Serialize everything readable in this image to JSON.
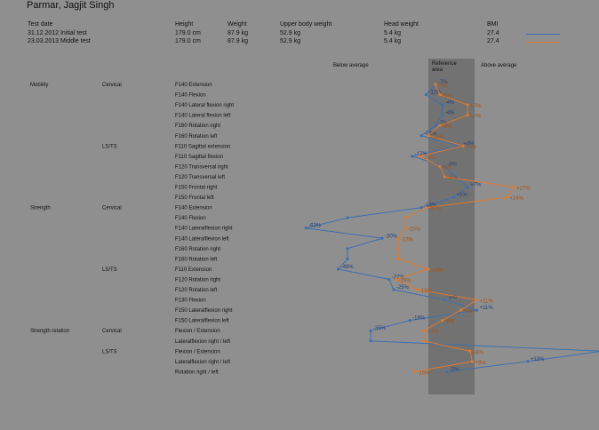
{
  "patient_name": "Parmar, Jagjit Singh",
  "header": {
    "columns": [
      "Test date",
      "Height",
      "Weight",
      "Upper body weight",
      "Head weight",
      "BMI"
    ],
    "rows": [
      {
        "date": "31.12.2012 Initial test",
        "height": "179.0 cm",
        "weight": "87.9 kg",
        "upper": "52.9 kg",
        "head": "5.4 kg",
        "bmi": "27.4",
        "color": "#3d6fb0"
      },
      {
        "date": "23.03.2013 Middle test",
        "height": "179.0 cm",
        "weight": "87.9 kg",
        "upper": "52.9 kg",
        "head": "5.4 kg",
        "bmi": "27.4",
        "color": "#e07a2e"
      }
    ]
  },
  "zones": {
    "below": "Below average",
    "reference": "Reference area",
    "above": "Above average"
  },
  "colors": {
    "initial": "#3d6fb0",
    "middle": "#e07a2e",
    "reference_band": "#6f6f6f",
    "background": "#8f8f8f"
  },
  "chart_data": {
    "type": "line",
    "orientation": "horizontal-profile",
    "categories": [
      {
        "group": "Mobility",
        "region": "Cervical",
        "test": "F140 Extension"
      },
      {
        "group": "",
        "region": "",
        "test": "F140 Flexion"
      },
      {
        "group": "",
        "region": "",
        "test": "F140 Lateral flexion right"
      },
      {
        "group": "",
        "region": "",
        "test": "F140 Lateral flexion left"
      },
      {
        "group": "",
        "region": "",
        "test": "F160 Rotation right"
      },
      {
        "group": "",
        "region": "",
        "test": "F160 Rotation left"
      },
      {
        "group": "",
        "region": "LS/TS",
        "test": "F110 Sagittal extension"
      },
      {
        "group": "",
        "region": "",
        "test": "F110 Sagittal flexion"
      },
      {
        "group": "",
        "region": "",
        "test": "F120 Transversal right"
      },
      {
        "group": "",
        "region": "",
        "test": "F120 Transversal left"
      },
      {
        "group": "",
        "region": "",
        "test": "F150 Frontal right"
      },
      {
        "group": "",
        "region": "",
        "test": "F150 Frontal left"
      },
      {
        "group": "Strength",
        "region": "Cervical",
        "test": "F140 Extension"
      },
      {
        "group": "",
        "region": "",
        "test": "F140 Flexion"
      },
      {
        "group": "",
        "region": "",
        "test": "F140 Lateralflexion right"
      },
      {
        "group": "",
        "region": "",
        "test": "F140 Lateralflexion left"
      },
      {
        "group": "",
        "region": "",
        "test": "F160 Rotation right"
      },
      {
        "group": "",
        "region": "",
        "test": "F160 Rotation left"
      },
      {
        "group": "",
        "region": "LS/TS",
        "test": "F110 Extension"
      },
      {
        "group": "",
        "region": "",
        "test": "F120 Rotation right"
      },
      {
        "group": "",
        "region": "",
        "test": "F120 Rotation left"
      },
      {
        "group": "",
        "region": "",
        "test": "F130 Flexion"
      },
      {
        "group": "",
        "region": "",
        "test": "F150 Lateralflexion right"
      },
      {
        "group": "",
        "region": "",
        "test": "F150 Lateralflexion left"
      },
      {
        "group": "Strength relation",
        "region": "Cervical",
        "test": "Flexion / Extension"
      },
      {
        "group": "",
        "region": "",
        "test": "Lateralflexion right / left"
      },
      {
        "group": "",
        "region": "LS/TS",
        "test": "Flexion / Extension"
      },
      {
        "group": "",
        "region": "",
        "test": "Lateralflexion right / left"
      },
      {
        "group": "",
        "region": "",
        "test": "Rotation right / left"
      }
    ],
    "series": [
      {
        "name": "31.12.2012 Initial test",
        "values": [
          -7,
          -11,
          -4,
          -4,
          -7,
          -13,
          4,
          -17,
          -3,
          2,
          7,
          1,
          -13,
          -45,
          -63,
          -30,
          -45,
          -45,
          -49,
          -27,
          -25,
          -3,
          11,
          -18,
          -35,
          -35,
          65,
          33,
          -2
        ],
        "labels": [
          "-7%",
          "-11%",
          "-4%",
          "-4%",
          "-7%",
          "-13%",
          "+4%",
          "-17%",
          "-3%",
          "",
          "+7%",
          "+1%",
          "-13%",
          "",
          "-63%",
          "-30%",
          "",
          "",
          "-49%",
          "-27%",
          "-25%",
          "-3%",
          "+11%",
          "-18%",
          "-35%",
          "",
          "+65%",
          "+33%",
          "-2%"
        ]
      },
      {
        "name": "23.03.2013 Middle test",
        "values": [
          -7,
          -5,
          7,
          7,
          -5,
          -10,
          5,
          -14,
          -5,
          -3,
          27,
          24,
          -11,
          -20,
          -20,
          -23,
          -23,
          -23,
          -10,
          -24,
          -15,
          11,
          4,
          -4,
          -12,
          -12,
          8,
          9,
          -16
        ],
        "labels": [
          "-7%",
          "-5%",
          "+7%",
          "+7%",
          "-5%",
          "-10%",
          "+5%",
          "-14%",
          "-5%",
          "-3%",
          "+27%",
          "+24%",
          "-11%",
          "",
          "-20%",
          "-23%",
          "",
          "",
          "-10%",
          "-24%",
          "-15%",
          "+11%",
          "+4%",
          "-4%",
          "-12%",
          "",
          "+8%",
          "+9%",
          "-16%"
        ]
      }
    ],
    "reference_range": [
      -10,
      10
    ],
    "xlim": [
      -80,
      80
    ]
  }
}
